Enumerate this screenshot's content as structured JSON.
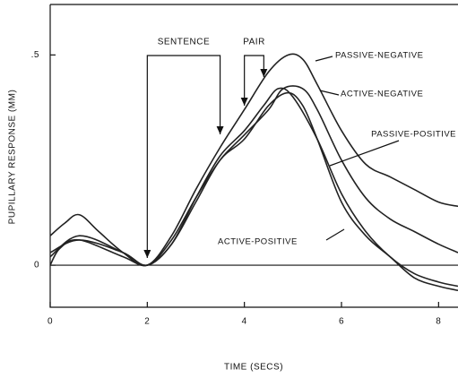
{
  "chart_data": {
    "type": "line",
    "xlabel": "TIME (SECS)",
    "ylabel": "PUPILLARY RESPONSE (MM)",
    "xlim": [
      0,
      8.4
    ],
    "ylim": [
      -0.1,
      0.62
    ],
    "xticks": [
      0,
      2,
      4,
      6,
      8
    ],
    "yticks": [
      0,
      {
        "value": 0.5,
        "label": ".5"
      }
    ],
    "reference_line": 0,
    "annotations": [
      {
        "text": "SENTENCE",
        "x": [
          2,
          3.5
        ]
      },
      {
        "text": "PAIR",
        "x": [
          4,
          4.4
        ]
      }
    ],
    "series": [
      {
        "name": "PASSIVE-NEGATIVE",
        "color": "#222",
        "x": [
          0,
          0.3,
          0.6,
          1,
          1.5,
          2,
          2.5,
          3,
          3.5,
          4,
          4.5,
          4.9,
          5.2,
          5.5,
          6,
          6.5,
          7,
          7.5,
          8,
          8.4
        ],
        "values": [
          0.07,
          0.1,
          0.12,
          0.08,
          0.03,
          0,
          0.07,
          0.18,
          0.28,
          0.37,
          0.46,
          0.5,
          0.49,
          0.43,
          0.32,
          0.24,
          0.21,
          0.18,
          0.15,
          0.14
        ]
      },
      {
        "name": "ACTIVE-NEGATIVE",
        "color": "#222",
        "x": [
          0,
          0.6,
          1.5,
          2,
          2.5,
          3,
          3.5,
          4,
          4.5,
          4.8,
          5.2,
          5.5,
          6,
          6.5,
          7,
          7.5,
          8,
          8.4
        ],
        "values": [
          0.03,
          0.06,
          0.03,
          0,
          0.06,
          0.16,
          0.25,
          0.31,
          0.37,
          0.42,
          0.42,
          0.37,
          0.25,
          0.16,
          0.11,
          0.08,
          0.05,
          0.03
        ]
      },
      {
        "name": "PASSIVE-POSITIVE",
        "color": "#222",
        "x": [
          0,
          0.2,
          0.6,
          1.5,
          2,
          2.5,
          3,
          3.5,
          4,
          4.4,
          4.7,
          5,
          5.5,
          6,
          6.5,
          7,
          7.5,
          8,
          8.4
        ],
        "values": [
          0,
          0.04,
          0.06,
          0.02,
          0,
          0.05,
          0.16,
          0.26,
          0.32,
          0.38,
          0.42,
          0.4,
          0.3,
          0.17,
          0.08,
          0.02,
          -0.02,
          -0.04,
          -0.05
        ]
      },
      {
        "name": "ACTIVE-POSITIVE",
        "color": "#222",
        "x": [
          0,
          0.6,
          1.5,
          2,
          2.5,
          3,
          3.5,
          4,
          4.5,
          4.9,
          5.2,
          5.5,
          6,
          6.5,
          7,
          7.5,
          8,
          8.4
        ],
        "values": [
          0.02,
          0.07,
          0.03,
          0,
          0.05,
          0.15,
          0.25,
          0.3,
          0.38,
          0.41,
          0.38,
          0.3,
          0.15,
          0.07,
          0.02,
          -0.03,
          -0.05,
          -0.06
        ]
      }
    ]
  }
}
